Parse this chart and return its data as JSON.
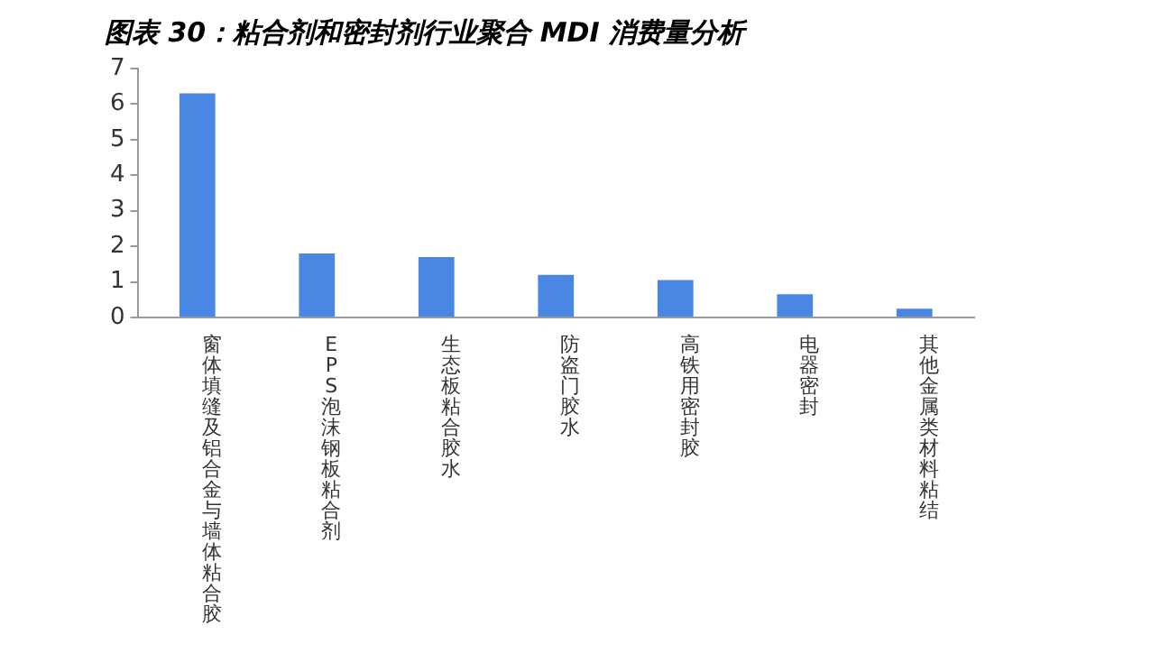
{
  "chart_data": {
    "type": "bar",
    "title": "图表 30：粘合剂和密封剂行业聚合 MDI 消费量分析",
    "categories": [
      "窗体填缝及铝合金与墙体粘合胶",
      "EPS泡沫钢板粘合剂",
      "生态板粘合胶水",
      "防盗门胶水",
      "高铁用密封胶",
      "电器密封",
      "其他金属类材料粘结"
    ],
    "values": [
      6.3,
      1.8,
      1.7,
      1.2,
      1.05,
      0.65,
      0.25
    ],
    "color": "#4a86e4",
    "ylim": [
      0,
      7
    ],
    "yticks": [
      0,
      1,
      2,
      3,
      4,
      5,
      6,
      7
    ]
  }
}
